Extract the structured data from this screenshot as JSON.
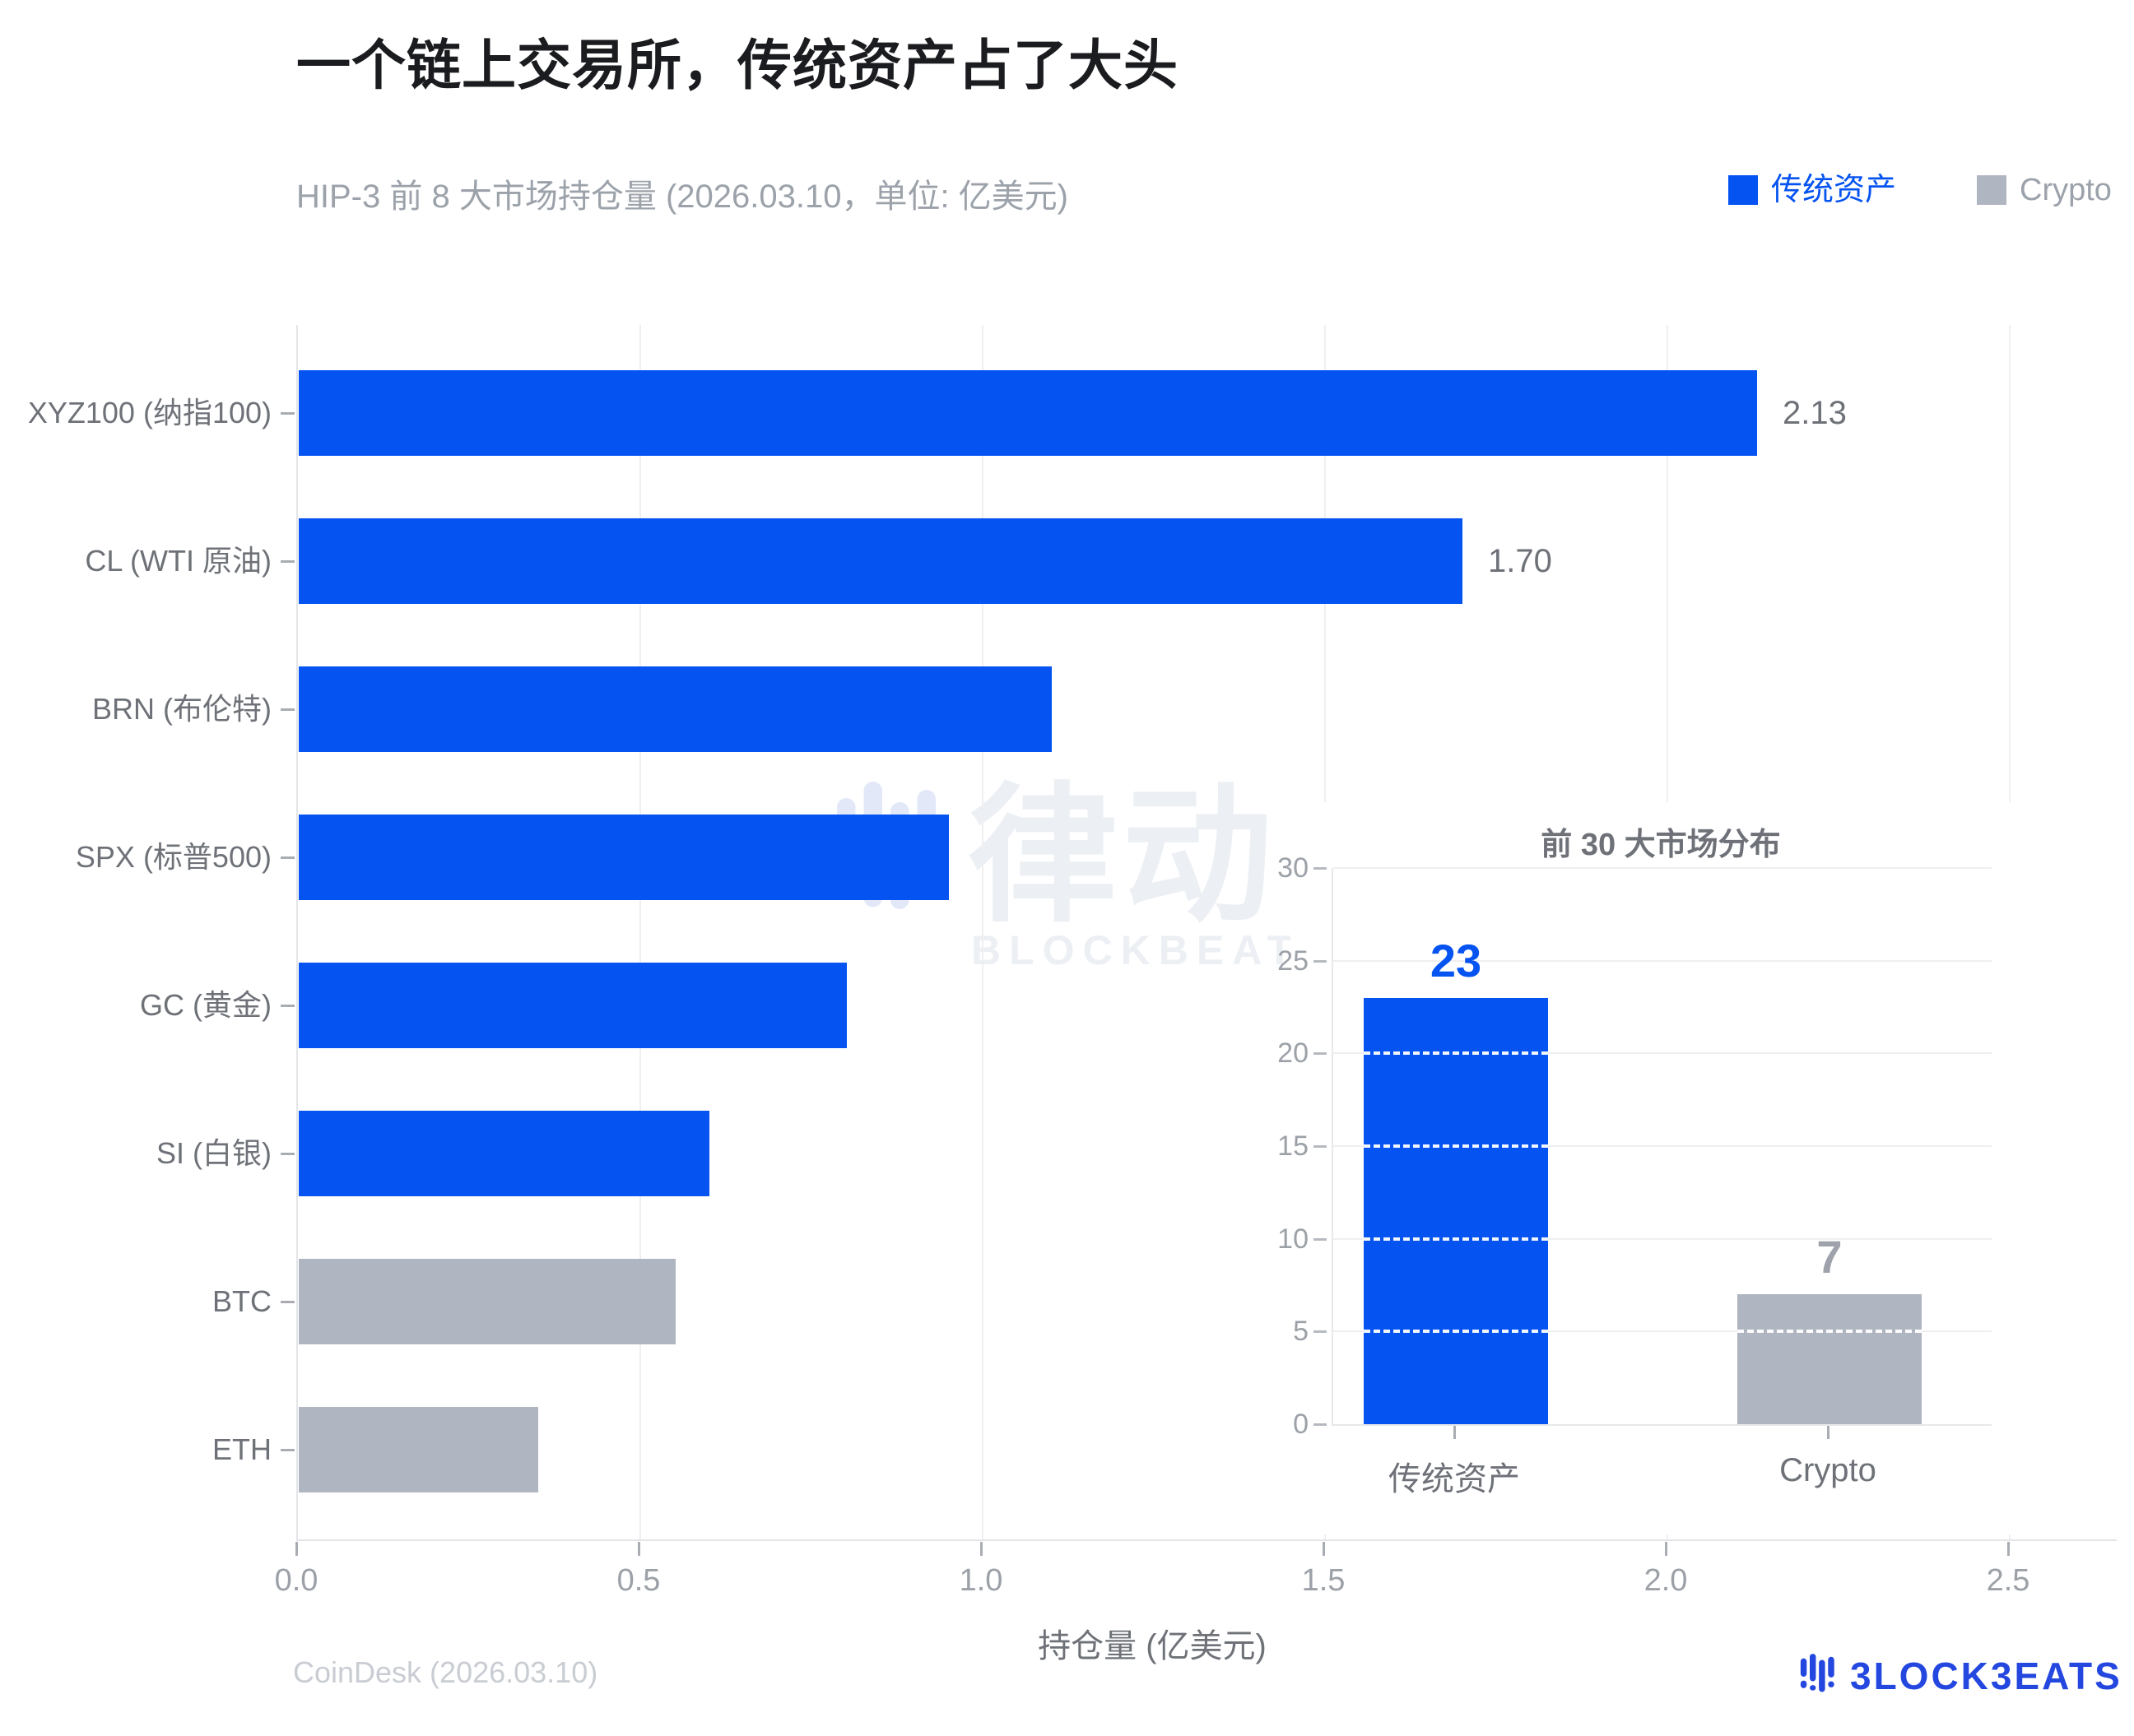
{
  "page": {
    "title": "一个链上交易所，传统资产占了大头",
    "subtitle": "HIP-3 前 8 大市场持仓量 (2026.03.10，单位: 亿美元)",
    "source": "CoinDesk (2026.03.10)",
    "brand": "BLOCKBEATS",
    "brand_display": "3LOCK3EATS",
    "watermark_cn": "律动",
    "watermark_en": "BLOCKBEATS"
  },
  "legend": {
    "items": [
      {
        "label": "传统资产",
        "color": "#0553F1",
        "label_color": "#0553F1"
      },
      {
        "label": "Crypto",
        "color": "#B0B6C1",
        "label_color": "#9CA2AB"
      }
    ]
  },
  "colors": {
    "traditional": "#0553F1",
    "crypto": "#B0B6C1",
    "grid": "#EFEFF1",
    "spine": "#E4E5E8",
    "tick": "#A9ADB3",
    "label_gray": "#6E7278",
    "tick_label": "#9CA1A8",
    "title": "#1B1C1F",
    "subtitle": "#9CA2AA",
    "footer": "#C9CDD3",
    "brand_blue": "#2447DF",
    "watermark": "#ECEFF3",
    "watermark_icon": "#E2E8F7"
  },
  "chart_data": [
    {
      "type": "bar",
      "orientation": "horizontal",
      "title": "HIP-3 前 8 大市场持仓量 (2026.03.10，单位: 亿美元)",
      "categories": [
        "XYZ100 (纳指100)",
        "CL (WTI 原油)",
        "BRN (布伦特)",
        "SPX (标普500)",
        "GC (黄金)",
        "SI (白银)",
        "BTC",
        "ETH"
      ],
      "values": [
        2.13,
        1.7,
        1.1,
        0.95,
        0.8,
        0.6,
        0.55,
        0.35
      ],
      "series": [
        {
          "name": "传统资产",
          "color": "#0553F1",
          "indices": [
            0,
            1,
            2,
            3,
            4,
            5
          ]
        },
        {
          "name": "Crypto",
          "color": "#B0B6C1",
          "indices": [
            6,
            7
          ]
        }
      ],
      "data_labels": [
        "2.13",
        "1.70",
        "",
        "",
        "",
        "",
        "",
        ""
      ],
      "xlabel": "持仓量 (亿美元)",
      "xlim": [
        0,
        2.5
      ],
      "xticks": [
        "0.0",
        "0.5",
        "1.0",
        "1.5",
        "2.0",
        "2.5"
      ],
      "grid": "vertical-gridlines",
      "legend_position": "top-right"
    },
    {
      "type": "bar",
      "orientation": "vertical",
      "title": "前 30 大市场分布",
      "categories": [
        "传统资产",
        "Crypto"
      ],
      "values": [
        23,
        7
      ],
      "data_labels": [
        "23",
        "7"
      ],
      "bar_colors": [
        "#0553F1",
        "#B0B6C1"
      ],
      "data_label_colors": [
        "#0553F1",
        "#9EA3AB"
      ],
      "ylim": [
        0,
        30
      ],
      "yticks": [
        "0",
        "5",
        "10",
        "15",
        "20",
        "25",
        "30"
      ],
      "grid": "horizontal-gridlines"
    }
  ]
}
